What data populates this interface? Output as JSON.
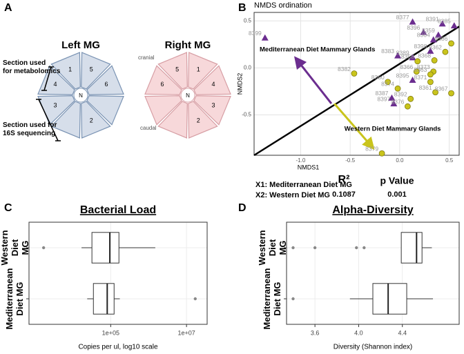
{
  "chart_data": [
    {
      "type": "diagram",
      "panel": "A",
      "left_title": "Left MG",
      "right_title": "Right MG",
      "left_segments": [
        "1",
        "5",
        "6",
        "2",
        "3",
        "4"
      ],
      "right_segments": [
        "5",
        "1",
        "4",
        "3",
        "2",
        "6"
      ],
      "center": "N",
      "cranial": "cranial",
      "caudal": "caudal",
      "annotations": [
        "Section used\nfor metabolomics",
        "Section used for\n16S sequencing"
      ]
    },
    {
      "type": "scatter",
      "panel": "B",
      "title": "NMDS ordination",
      "xlabel": "NMDS1",
      "ylabel": "NMDS2",
      "xlim": [
        -1.47,
        0.6
      ],
      "ylim": [
        -0.93,
        0.59
      ],
      "xticks": [
        {
          "value": -1,
          "label": "-1.0"
        },
        -0.5,
        {
          "value": 0,
          "label": "0.0"
        },
        0.5
      ],
      "yticks": [
        -0.5,
        {
          "value": 0,
          "label": "0.0"
        },
        0.5
      ],
      "grid": true,
      "groups": [
        {
          "color": "#6b2d8f",
          "marker": "triangle",
          "labels": [
            "8377",
            "8391",
            "8385",
            "8396",
            "8359",
            "8364",
            "8399",
            "8383",
            "8389",
            "8398",
            "8387",
            "8397",
            "8395"
          ],
          "x": [
            0.13,
            0.43,
            0.55,
            0.24,
            0.39,
            0.34,
            -1.36,
            -0.02,
            0.13,
            0.31,
            -0.08,
            -0.06,
            0.13
          ],
          "y": [
            0.49,
            0.47,
            0.45,
            0.38,
            0.35,
            0.3,
            0.32,
            0.13,
            0.11,
            0.18,
            -0.32,
            -0.38,
            -0.13
          ]
        },
        {
          "color": "#c9c41c",
          "marker": "circle",
          "labels": [
            "8382",
            "8386",
            "8362",
            "8368",
            "8358",
            "8373",
            "8366",
            "8363",
            "8360",
            "8374",
            "8371",
            "8392",
            "8361",
            "8376",
            "8367",
            "8379"
          ],
          "x": [
            -0.46,
            0.52,
            0.46,
            0.35,
            0.18,
            0.34,
            0.17,
            0.31,
            -0.12,
            -0.02,
            0.31,
            0.11,
            0.36,
            0.08,
            0.52,
            -0.18
          ],
          "y": [
            -0.06,
            0.26,
            0.17,
            0.08,
            0.07,
            -0.04,
            -0.04,
            -0.07,
            -0.15,
            -0.22,
            -0.15,
            -0.33,
            -0.26,
            -0.41,
            -0.27,
            -0.91
          ]
        }
      ],
      "fit_line": {
        "x": [
          -1.47,
          0.6
        ],
        "y": [
          -0.93,
          0.44
        ]
      },
      "arrows": [
        {
          "label": "Mediterranean Diet Mammary Glands",
          "color": "#6b2d8f",
          "x": [
            -0.69,
            -1.04
          ],
          "y": [
            -0.38,
            0.09
          ]
        },
        {
          "label": "Western Diet Mammary Glands",
          "color": "#c9c41c",
          "x": [
            -0.66,
            -0.28
          ],
          "y": [
            -0.38,
            -0.84
          ]
        }
      ],
      "legend_notes": [
        "X1: Mediterranean Diet MG",
        "X2: Western Diet MG"
      ],
      "stats": {
        "r2_label": "R²",
        "r2": 0.1087,
        "p_label": "p Value",
        "p": 0.001
      }
    },
    {
      "type": "boxplot",
      "panel": "C",
      "title": "Bacterial Load",
      "xlabel": "Copies per ul, log10 scale",
      "log_x": true,
      "xlim": [
        700,
        35000000
      ],
      "xticks": [
        {
          "value": 100000,
          "label": "1e+05"
        },
        {
          "value": 10000000,
          "label": "1e+07"
        }
      ],
      "grid": true,
      "categories": [
        "Western Diet\nMG",
        "Mediterranean\nDiet MG"
      ],
      "boxes": [
        {
          "min": 17000,
          "q1": 32000,
          "median": 95000,
          "q3": 165000,
          "max": 1500000,
          "outliers": [
            1700
          ]
        },
        {
          "min": 24000,
          "q1": 35000,
          "median": 81000,
          "q3": 123000,
          "max": 174000,
          "outliers": [
            17000000
          ]
        }
      ]
    },
    {
      "type": "boxplot",
      "panel": "D",
      "title": "Alpha-Diversity",
      "xlabel": "Diversity (Shannon index)",
      "log_x": false,
      "xlim": [
        3.34,
        4.92
      ],
      "xticks": [
        3.6,
        {
          "value": 4,
          "label": "4.0"
        },
        4.4
      ],
      "grid": true,
      "categories": [
        "Western Diet\nMG",
        "Mediterranean\nDiet MG"
      ],
      "boxes": [
        {
          "min": 4.39,
          "q1": 4.39,
          "median": 4.53,
          "q3": 4.58,
          "max": 4.67,
          "outliers": [
            3.4,
            3.6,
            3.98,
            4.05
          ]
        },
        {
          "min": 3.92,
          "q1": 4.13,
          "median": 4.27,
          "q3": 4.44,
          "max": 4.68,
          "outliers": [
            3.4
          ]
        }
      ]
    }
  ]
}
